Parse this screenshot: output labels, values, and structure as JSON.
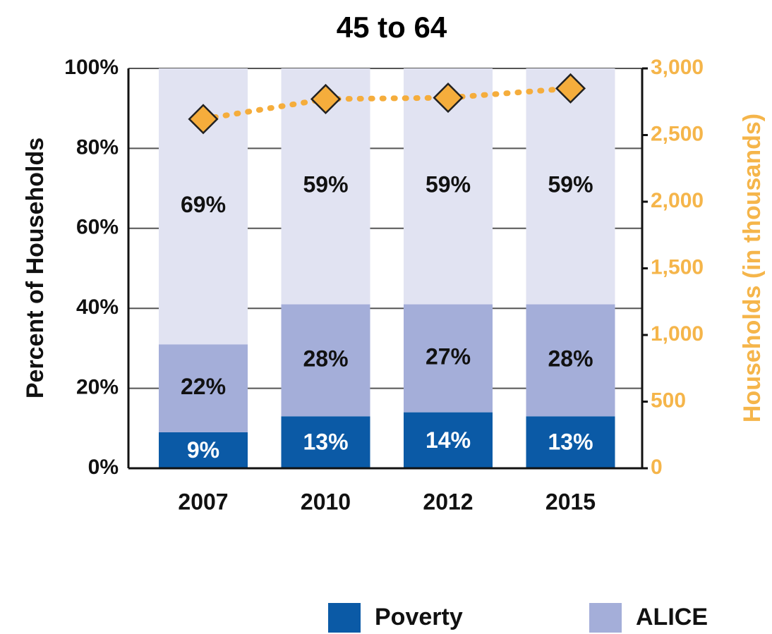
{
  "chart_data": {
    "type": "stacked_bar",
    "title": "45 to 64",
    "categories": [
      "2007",
      "2010",
      "2012",
      "2015"
    ],
    "series": [
      {
        "name": "Poverty",
        "color": "#0b5aa6",
        "values": [
          9,
          13,
          14,
          13
        ],
        "value_labels": [
          "9%",
          "13%",
          "14%",
          "13%"
        ]
      },
      {
        "name": "ALICE",
        "color": "#a4aed9",
        "values": [
          22,
          28,
          27,
          28
        ],
        "value_labels": [
          "22%",
          "28%",
          "27%",
          "28%"
        ]
      },
      {
        "color": "#e1e3f2",
        "values": [
          69,
          59,
          59,
          59
        ],
        "value_labels": [
          "69%",
          "59%",
          "59%",
          "59%"
        ]
      },
      {
        "type": "line",
        "axis": "y2",
        "color": "#f5ad3c",
        "values": [
          2620,
          2770,
          2780,
          2850
        ]
      }
    ],
    "y_label": "Percent of Households",
    "y2_label": "Households (in thousands)",
    "ylim": [
      0,
      100
    ],
    "yticks": [
      {
        "value": 0,
        "label": "0%"
      },
      {
        "value": 20,
        "label": "20%"
      },
      {
        "value": 40,
        "label": "40%"
      },
      {
        "value": 60,
        "label": "60%"
      },
      {
        "value": 80,
        "label": "80%"
      },
      {
        "value": 100,
        "label": "100%"
      }
    ],
    "y2lim": [
      0,
      3000
    ],
    "y2ticks": [
      0,
      500,
      {
        "value": 1000,
        "label": "1,000"
      },
      {
        "value": 1500,
        "label": "1,500"
      },
      {
        "value": 2000,
        "label": "2,000"
      },
      {
        "value": 2500,
        "label": "2,500"
      },
      {
        "value": 3000,
        "label": "3,000"
      }
    ],
    "grid": true,
    "legend": "bottom"
  }
}
